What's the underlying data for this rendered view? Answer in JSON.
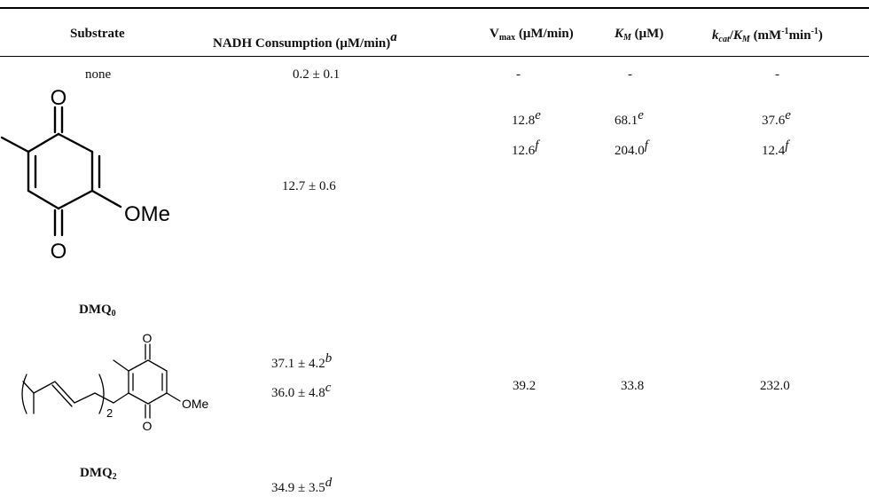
{
  "table": {
    "headers": {
      "substrate": "Substrate",
      "nadh": "NADH Consumption (",
      "nadh_mu": "μ",
      "nadh_unit": "M/min)",
      "nadh_note": "a",
      "vmax_main": "V",
      "vmax_sub": "max",
      "vmax_unit": " (μM/min)",
      "km_k": "K",
      "km_m": "M",
      "km_unit": " (μM)",
      "kcat_k": "k",
      "kcat_sub": "cat",
      "kcat_slash": "/",
      "kcat_K": "K",
      "kcat_M": "M",
      "kcat_unit_a": " (mM",
      "kcat_exp1": "-1",
      "kcat_unit_b": "min",
      "kcat_exp2": "-1",
      "kcat_unit_c": ")"
    },
    "rows": {
      "none": {
        "substrate": "none",
        "nadh": "0.2 ± 0.1",
        "vmax": "-",
        "km": "-",
        "kcat_km": "-"
      },
      "dmq0": {
        "label_main": "DMQ",
        "label_sub": "0",
        "nadh": "12.7 ± 0.6",
        "vmax_e": "12.8",
        "km_e": "68.1",
        "kcat_e": "37.6",
        "note_e": "e",
        "vmax_f": "12.6",
        "km_f": "204.0",
        "kcat_f": "12.4",
        "note_f": "f",
        "struct_o_top": "O",
        "struct_o_bottom": "O",
        "struct_ome": "OMe"
      },
      "dmq2": {
        "label_main": "DMQ",
        "label_sub": "2",
        "nadh_b": "37.1 ± 4.2",
        "note_b": "b",
        "nadh_c": "36.0 ± 4.8",
        "note_c": "c",
        "nadh_d": "34.9 ± 3.5",
        "note_d": "d",
        "vmax": "39.2",
        "km": "33.8",
        "kcat_km": "232.0",
        "struct_o_top": "O",
        "struct_o_bottom": "O",
        "struct_ome": "OMe",
        "struct_n": "2"
      }
    }
  }
}
